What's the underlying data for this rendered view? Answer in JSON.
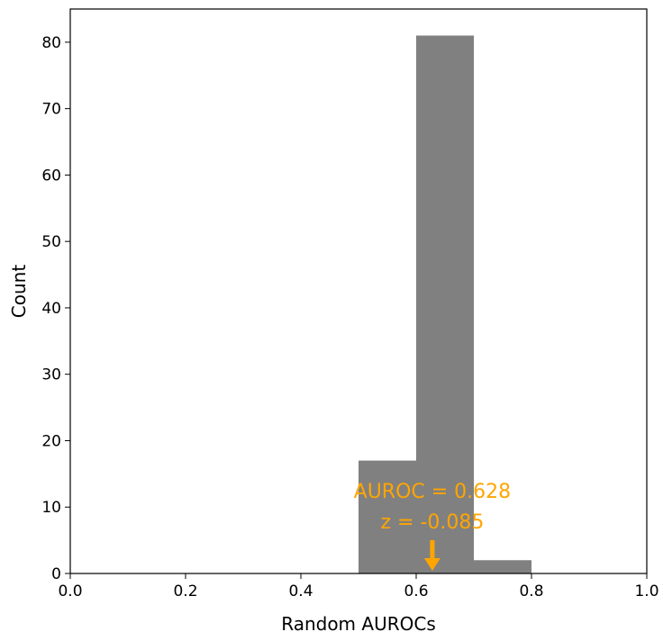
{
  "chart_data": {
    "type": "bar",
    "subtype": "histogram",
    "bins": [
      {
        "start": 0.5,
        "end": 0.6,
        "count": 17
      },
      {
        "start": 0.6,
        "end": 0.7,
        "count": 81
      },
      {
        "start": 0.7,
        "end": 0.8,
        "count": 2
      }
    ],
    "xlabel": "Random AUROCs",
    "ylabel": "Count",
    "xlim": [
      0.0,
      1.0
    ],
    "ylim": [
      0,
      85
    ],
    "xticks": [
      "0.0",
      "0.2",
      "0.4",
      "0.6",
      "0.8",
      "1.0"
    ],
    "yticks": [
      "0",
      "10",
      "20",
      "30",
      "40",
      "50",
      "60",
      "70",
      "80"
    ],
    "grid": false,
    "bar_color": "#808080",
    "annotation": {
      "x": 0.628,
      "line1": "AUROC = 0.628",
      "line2": "z = -0.085",
      "color": "#FFA500"
    }
  }
}
